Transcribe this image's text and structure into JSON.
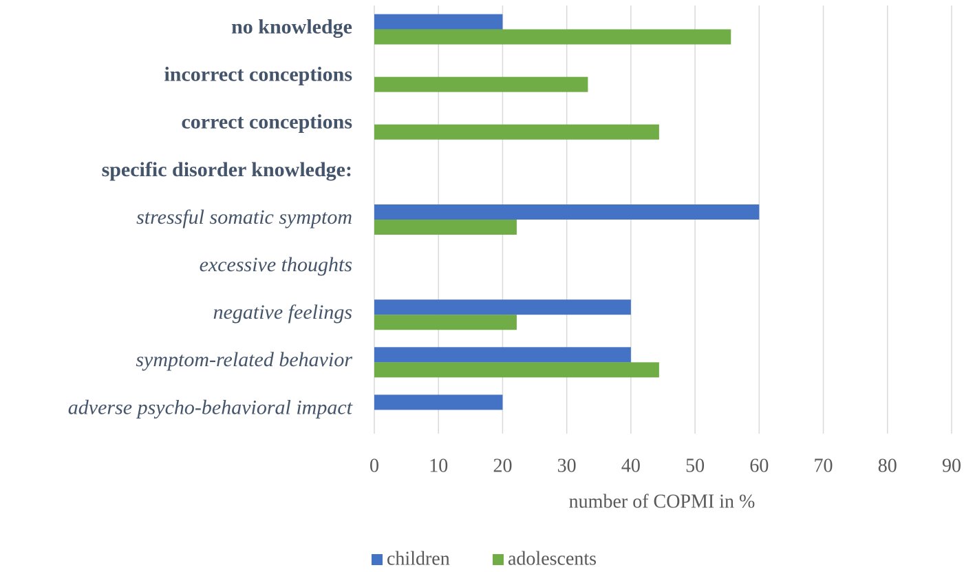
{
  "chart_data": {
    "type": "bar",
    "orientation": "horizontal",
    "categories": [
      {
        "label": "no knowledge",
        "style": "bold"
      },
      {
        "label": "incorrect conceptions",
        "style": "bold"
      },
      {
        "label": "correct conceptions",
        "style": "bold"
      },
      {
        "label": "specific disorder knowledge:",
        "style": "bold"
      },
      {
        "label": "stressful somatic symptom",
        "style": "italic"
      },
      {
        "label": "excessive thoughts",
        "style": "italic"
      },
      {
        "label": "negative feelings",
        "style": "italic"
      },
      {
        "label": "symptom-related behavior",
        "style": "italic"
      },
      {
        "label": "adverse psycho-behavioral impact",
        "style": "italic"
      }
    ],
    "series": [
      {
        "name": "children",
        "color": "#4472c4",
        "values": [
          20,
          0,
          0,
          0,
          60,
          0,
          40,
          40,
          20
        ]
      },
      {
        "name": "adolescents",
        "color": "#70ad47",
        "values": [
          55.6,
          33.3,
          44.4,
          0,
          22.2,
          0,
          22.2,
          44.4,
          0
        ]
      }
    ],
    "xlim": [
      0,
      90
    ],
    "xticks": [
      0,
      10,
      20,
      30,
      40,
      50,
      60,
      70,
      80,
      90
    ],
    "xlabel": "number of COPMI in %",
    "ylabel": "",
    "title": "",
    "grid": true,
    "legend_position": "bottom"
  }
}
